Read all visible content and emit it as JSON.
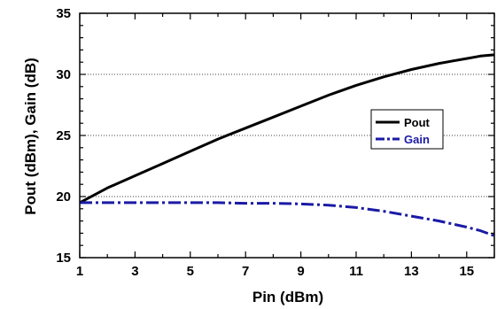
{
  "chart_data": {
    "type": "line",
    "xlabel": "Pin (dBm)",
    "ylabel": "Pout (dBm), Gain (dB)",
    "xlim": [
      1,
      16
    ],
    "ylim": [
      15,
      35
    ],
    "x_ticks": [
      1,
      3,
      5,
      7,
      9,
      11,
      13,
      15
    ],
    "y_ticks": [
      15,
      20,
      25,
      30,
      35
    ],
    "grid": "horizontal dotted at 20, 25, 30",
    "legend_position": "center-right",
    "series": [
      {
        "name": "Pout",
        "color": "#000000",
        "style": "solid",
        "x": [
          1,
          2,
          3,
          4,
          5,
          6,
          7,
          8,
          9,
          10,
          11,
          12,
          13,
          14,
          15,
          15.5,
          16
        ],
        "y": [
          19.5,
          20.7,
          21.7,
          22.7,
          23.7,
          24.7,
          25.6,
          26.5,
          27.4,
          28.3,
          29.1,
          29.8,
          30.4,
          30.9,
          31.3,
          31.5,
          31.6
        ]
      },
      {
        "name": "Gain",
        "color": "#1a1aa6",
        "style": "dash-dot",
        "x": [
          1,
          2,
          3,
          4,
          5,
          6,
          7,
          8,
          9,
          10,
          11,
          12,
          13,
          14,
          15,
          15.5,
          16
        ],
        "y": [
          19.5,
          19.5,
          19.5,
          19.5,
          19.5,
          19.5,
          19.45,
          19.45,
          19.4,
          19.3,
          19.1,
          18.8,
          18.4,
          18.0,
          17.5,
          17.2,
          16.8
        ]
      }
    ]
  }
}
